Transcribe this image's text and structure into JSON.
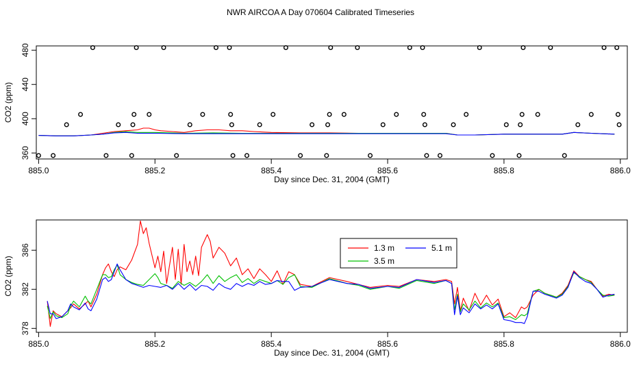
{
  "title": "NWR AIRCOA A  Day 070604  Calibrated Timeseries",
  "chart_data": [
    {
      "type": "scatter",
      "panel": "top",
      "xlabel": "Day since Dec. 31, 2004 (GMT)",
      "ylabel": "CO2 (ppm)",
      "xlim": [
        884.996,
        886.012
      ],
      "ylim": [
        353,
        485
      ],
      "xticks": [
        885.0,
        885.2,
        885.4,
        885.6,
        885.8,
        886.0
      ],
      "xtick_labels": [
        "885.0",
        "885.2",
        "885.4",
        "885.6",
        "885.8",
        "886.0"
      ],
      "yticks": [
        360,
        400,
        440,
        480
      ],
      "ytick_labels": [
        "360",
        "400",
        "440",
        "480"
      ],
      "points": {
        "x": [
          885.0,
          885.025,
          885.048,
          885.072,
          885.093,
          885.116,
          885.137,
          885.16,
          885.162,
          885.164,
          885.168,
          885.19,
          885.215,
          885.237,
          885.26,
          885.282,
          885.305,
          885.328,
          885.33,
          885.332,
          885.334,
          885.358,
          885.38,
          885.403,
          885.425,
          885.45,
          885.47,
          885.495,
          885.497,
          885.5,
          885.502,
          885.525,
          885.548,
          885.57,
          885.592,
          885.615,
          885.638,
          885.66,
          885.662,
          885.664,
          885.667,
          885.69,
          885.713,
          885.735,
          885.758,
          885.78,
          885.804,
          885.826,
          885.828,
          885.831,
          885.833,
          885.858,
          885.88,
          885.904,
          885.927,
          885.95,
          885.972,
          885.994,
          885.996,
          885.998
        ],
        "y": [
          357,
          357,
          393,
          405,
          483,
          357,
          393,
          357,
          393,
          405,
          483,
          405,
          483,
          357,
          393,
          405,
          483,
          483,
          405,
          393,
          357,
          357,
          393,
          405,
          483,
          357,
          393,
          357,
          393,
          405,
          483,
          405,
          483,
          357,
          393,
          405,
          483,
          483,
          405,
          393,
          357,
          357,
          393,
          405,
          483,
          357,
          393,
          357,
          393,
          405,
          483,
          405,
          483,
          357,
          393,
          405,
          483,
          483,
          405,
          393
        ]
      },
      "series": [
        {
          "name": "1.3 m",
          "color": "#ff0000",
          "x": [
            885.0,
            885.03,
            885.06,
            885.09,
            885.11,
            885.13,
            885.15,
            885.17,
            885.18,
            885.19,
            885.2,
            885.21,
            885.23,
            885.25,
            885.27,
            885.29,
            885.31,
            885.33,
            885.35,
            885.37,
            885.4,
            885.45,
            885.5,
            885.55,
            885.6,
            885.65,
            885.7,
            885.72,
            885.75,
            885.8,
            885.85,
            885.9,
            885.92,
            885.95,
            885.99
          ],
          "values": [
            380.5,
            380,
            380,
            381,
            383,
            385,
            386,
            387,
            389,
            389,
            387,
            386,
            385,
            384,
            386,
            387,
            387,
            386,
            386,
            385,
            384,
            383.5,
            383.5,
            383,
            383,
            383,
            383,
            381,
            381,
            382,
            382,
            382,
            384,
            383,
            382
          ]
        },
        {
          "name": "3.5 m",
          "color": "#00c000",
          "x": [
            885.0,
            885.03,
            885.06,
            885.09,
            885.11,
            885.13,
            885.15,
            885.17,
            885.2,
            885.25,
            885.3,
            885.35,
            885.4,
            885.45,
            885.5,
            885.55,
            885.6,
            885.65,
            885.7,
            885.72,
            885.75,
            885.8,
            885.85,
            885.9,
            885.92,
            885.95,
            885.99
          ],
          "values": [
            380.5,
            380,
            380,
            381,
            382,
            384,
            385,
            384,
            384,
            383,
            383.5,
            383,
            383,
            383,
            383,
            383,
            383,
            383,
            383,
            381,
            381,
            382,
            382,
            382,
            384,
            383,
            382
          ]
        },
        {
          "name": "5.1 m",
          "color": "#0000ff",
          "x": [
            885.0,
            885.03,
            885.06,
            885.09,
            885.11,
            885.13,
            885.15,
            885.17,
            885.2,
            885.25,
            885.3,
            885.35,
            885.4,
            885.45,
            885.5,
            885.55,
            885.6,
            885.65,
            885.7,
            885.72,
            885.75,
            885.8,
            885.85,
            885.9,
            885.92,
            885.95,
            885.99
          ],
          "values": [
            380.5,
            380,
            380,
            381,
            382,
            383.5,
            384,
            383,
            383,
            382.5,
            382.5,
            382.5,
            382.5,
            382.5,
            382.5,
            382.5,
            382.5,
            382.5,
            382.5,
            381,
            381,
            382,
            382,
            382,
            384,
            383,
            382
          ]
        }
      ]
    },
    {
      "type": "line",
      "panel": "bottom",
      "xlabel": "Day since Dec. 31, 2004 (GMT)",
      "ylabel": "CO2 (ppm)",
      "xlim": [
        884.996,
        886.012
      ],
      "ylim": [
        377.6,
        389.1
      ],
      "xticks": [
        885.0,
        885.2,
        885.4,
        885.6,
        885.8,
        886.0
      ],
      "xtick_labels": [
        "885.0",
        "885.2",
        "885.4",
        "885.6",
        "885.8",
        "886.0"
      ],
      "yticks": [
        378,
        382,
        386
      ],
      "ytick_labels": [
        "378",
        "382",
        "386"
      ],
      "legend": {
        "entries": [
          "1.3 m",
          "3.5 m",
          "5.1 m"
        ],
        "placement": "top-center"
      },
      "series": [
        {
          "name": "1.3 m",
          "color": "#ff0000",
          "x": [
            885.015,
            885.02,
            885.025,
            885.03,
            885.04,
            885.05,
            885.055,
            885.06,
            885.07,
            885.08,
            885.085,
            885.09,
            885.1,
            885.11,
            885.115,
            885.12,
            885.125,
            885.13,
            885.135,
            885.14,
            885.15,
            885.16,
            885.17,
            885.175,
            885.18,
            885.185,
            885.19,
            885.2,
            885.205,
            885.21,
            885.215,
            885.22,
            885.23,
            885.235,
            885.24,
            885.245,
            885.25,
            885.255,
            885.26,
            885.265,
            885.27,
            885.275,
            885.28,
            885.29,
            885.295,
            885.3,
            885.31,
            885.32,
            885.33,
            885.34,
            885.35,
            885.36,
            885.37,
            885.38,
            885.39,
            885.4,
            885.41,
            885.42,
            885.43,
            885.44,
            885.45,
            885.47,
            885.5,
            885.53,
            885.55,
            885.57,
            885.6,
            885.62,
            885.65,
            885.68,
            885.7,
            885.71,
            885.715,
            885.72,
            885.725,
            885.73,
            885.74,
            885.75,
            885.76,
            885.77,
            885.78,
            885.79,
            885.8,
            885.81,
            885.82,
            885.83,
            885.835,
            885.84,
            885.85,
            885.86,
            885.87,
            885.88,
            885.89,
            885.9,
            885.91,
            885.92,
            885.93,
            885.94,
            885.95,
            885.96,
            885.97,
            885.98,
            885.99
          ],
          "values": [
            380.8,
            378.2,
            379.8,
            379.5,
            379.2,
            379.8,
            380.1,
            380.5,
            380.0,
            380.5,
            380.8,
            380.2,
            381.5,
            383.5,
            384.2,
            384.6,
            383.8,
            383.3,
            384.0,
            384.3,
            384.0,
            385.0,
            386.6,
            389.0,
            387.7,
            388.3,
            386.7,
            384.2,
            385.4,
            383.8,
            385.9,
            382.6,
            386.3,
            383.0,
            386.1,
            382.5,
            386.6,
            383.8,
            384.9,
            383.5,
            385.4,
            383.4,
            386.3,
            387.6,
            386.9,
            385.2,
            386.3,
            385.7,
            384.4,
            385.2,
            383.5,
            384.1,
            383.1,
            384.1,
            383.5,
            382.8,
            383.9,
            382.5,
            383.8,
            383.5,
            382.5,
            382.3,
            383.2,
            382.8,
            382.5,
            382.2,
            382.4,
            382.3,
            383.0,
            382.8,
            383.0,
            382.8,
            380.5,
            382.2,
            379.8,
            381.1,
            379.8,
            381.6,
            380.4,
            381.4,
            380.4,
            381.0,
            379.2,
            379.6,
            379.1,
            380.2,
            380.0,
            380.2,
            381.4,
            382.0,
            381.6,
            381.4,
            381.2,
            381.6,
            382.4,
            383.9,
            383.3,
            383.0,
            382.8,
            382.0,
            381.3,
            381.5,
            381.4
          ]
        },
        {
          "name": "3.5 m",
          "color": "#00c000",
          "x": [
            885.015,
            885.02,
            885.025,
            885.03,
            885.04,
            885.05,
            885.055,
            885.06,
            885.07,
            885.08,
            885.085,
            885.09,
            885.1,
            885.11,
            885.115,
            885.12,
            885.125,
            885.13,
            885.135,
            885.14,
            885.15,
            885.16,
            885.17,
            885.18,
            885.19,
            885.2,
            885.205,
            885.21,
            885.215,
            885.22,
            885.23,
            885.24,
            885.25,
            885.26,
            885.27,
            885.28,
            885.29,
            885.3,
            885.31,
            885.32,
            885.33,
            885.34,
            885.35,
            885.36,
            885.37,
            885.38,
            885.39,
            885.4,
            885.41,
            885.42,
            885.43,
            885.44,
            885.45,
            885.47,
            885.5,
            885.53,
            885.55,
            885.57,
            885.6,
            885.62,
            885.65,
            885.68,
            885.7,
            885.71,
            885.715,
            885.72,
            885.725,
            885.73,
            885.74,
            885.75,
            885.76,
            885.77,
            885.78,
            885.79,
            885.8,
            885.81,
            885.82,
            885.83,
            885.835,
            885.84,
            885.85,
            885.86,
            885.87,
            885.88,
            885.89,
            885.9,
            885.91,
            885.92,
            885.93,
            885.94,
            885.95,
            885.96,
            885.97,
            885.98,
            885.99
          ],
          "values": [
            380.3,
            379.0,
            379.7,
            379.3,
            379.1,
            379.5,
            380.3,
            380.8,
            380.2,
            381.3,
            380.8,
            380.5,
            382.0,
            383.5,
            383.5,
            383.2,
            383.3,
            384.0,
            384.5,
            383.5,
            383.0,
            382.7,
            382.5,
            382.4,
            383.0,
            383.6,
            383.2,
            382.6,
            382.5,
            382.4,
            382.1,
            382.8,
            382.4,
            382.7,
            382.3,
            382.8,
            383.5,
            382.6,
            383.4,
            382.8,
            383.2,
            383.5,
            382.7,
            383.1,
            382.6,
            383.0,
            382.8,
            382.6,
            382.9,
            382.5,
            383.2,
            383.5,
            382.3,
            382.2,
            383.1,
            382.6,
            382.4,
            382.0,
            382.3,
            382.1,
            382.9,
            382.6,
            382.9,
            382.6,
            379.9,
            381.5,
            379.7,
            380.5,
            379.9,
            380.8,
            380.1,
            380.6,
            380.2,
            380.6,
            379.1,
            379.2,
            378.9,
            379.4,
            379.3,
            379.5,
            381.8,
            382.0,
            381.6,
            381.4,
            381.2,
            381.5,
            382.3,
            383.7,
            383.3,
            383.0,
            382.7,
            382.0,
            381.4,
            381.3,
            381.4
          ]
        },
        {
          "name": "5.1 m",
          "color": "#0000ff",
          "x": [
            885.015,
            885.02,
            885.025,
            885.03,
            885.04,
            885.05,
            885.055,
            885.06,
            885.07,
            885.08,
            885.085,
            885.09,
            885.1,
            885.11,
            885.115,
            885.12,
            885.125,
            885.13,
            885.135,
            885.14,
            885.15,
            885.16,
            885.17,
            885.18,
            885.19,
            885.2,
            885.21,
            885.22,
            885.23,
            885.24,
            885.25,
            885.26,
            885.27,
            885.28,
            885.29,
            885.3,
            885.31,
            885.32,
            885.33,
            885.34,
            885.35,
            885.36,
            885.37,
            885.38,
            885.39,
            885.4,
            885.41,
            885.42,
            885.43,
            885.44,
            885.45,
            885.47,
            885.5,
            885.53,
            885.55,
            885.57,
            885.6,
            885.62,
            885.65,
            885.68,
            885.7,
            885.71,
            885.715,
            885.72,
            885.725,
            885.73,
            885.74,
            885.75,
            885.76,
            885.77,
            885.78,
            885.79,
            885.8,
            885.81,
            885.82,
            885.83,
            885.835,
            885.84,
            885.85,
            885.86,
            885.87,
            885.88,
            885.89,
            885.9,
            885.91,
            885.92,
            885.93,
            885.94,
            885.95,
            885.96,
            885.97,
            885.98,
            885.99
          ],
          "values": [
            380.8,
            379.5,
            379.5,
            379.0,
            379.2,
            379.8,
            380.5,
            380.2,
            379.9,
            380.6,
            380.0,
            379.8,
            381.0,
            383.0,
            383.2,
            382.8,
            383.0,
            383.8,
            384.6,
            384.0,
            383.0,
            382.6,
            382.4,
            382.2,
            382.4,
            382.3,
            382.2,
            382.4,
            382.0,
            382.6,
            382.0,
            382.5,
            381.9,
            382.4,
            382.3,
            381.9,
            382.6,
            382.2,
            382.0,
            382.6,
            382.3,
            382.6,
            382.4,
            382.8,
            382.5,
            382.6,
            382.9,
            382.8,
            382.8,
            381.9,
            382.2,
            382.3,
            383.0,
            382.6,
            382.5,
            382.1,
            382.3,
            382.2,
            383.0,
            382.7,
            382.9,
            382.6,
            379.4,
            381.3,
            379.4,
            380.1,
            379.6,
            380.5,
            380.0,
            380.4,
            380.0,
            380.5,
            378.9,
            378.8,
            378.6,
            378.6,
            378.5,
            379.2,
            381.8,
            381.8,
            381.5,
            381.3,
            381.1,
            381.4,
            382.2,
            383.8,
            383.2,
            382.8,
            382.6,
            382.0,
            381.2,
            381.4,
            381.5
          ]
        }
      ]
    }
  ]
}
